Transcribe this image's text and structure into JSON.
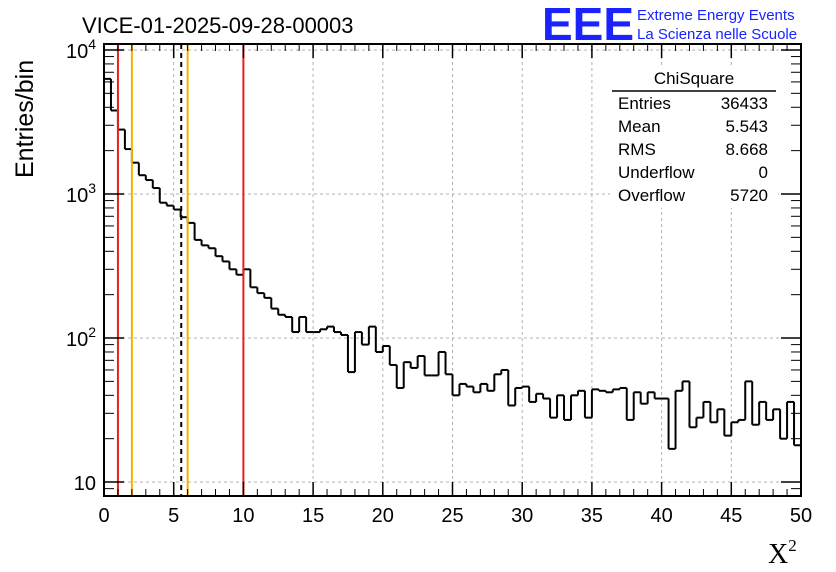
{
  "header": {
    "title": "VICE-01-2025-09-28-00003",
    "logo_text": "EEE",
    "logo_line1": "Extreme Energy Events",
    "logo_line2": "La Scienza nelle Scuole"
  },
  "stats": {
    "title": "ChiSquare",
    "rows": [
      {
        "label": "Entries",
        "value": "36433"
      },
      {
        "label": "Mean",
        "value": "5.543"
      },
      {
        "label": "RMS",
        "value": "8.668"
      },
      {
        "label": "Underflow",
        "value": "0"
      },
      {
        "label": "Overflow",
        "value": "5720"
      }
    ]
  },
  "colors": {
    "red": "#e8201d",
    "yellow": "#f0b400",
    "line": "#000000",
    "grid": "#b0b0b0",
    "logo": "#1a23ff"
  },
  "chart_data": {
    "type": "histogram",
    "title": "VICE-01-2025-09-28-00003",
    "xlabel": "X",
    "xlabel_superscript": "2",
    "ylabel": "Entries/bin",
    "xlim": [
      0,
      50
    ],
    "ylim": [
      8,
      11000
    ],
    "yscale": "log",
    "grid": true,
    "bin_width": 0.5,
    "x_ticks": [
      0,
      5,
      10,
      15,
      20,
      25,
      30,
      35,
      40,
      45,
      50
    ],
    "x_tick_labels": [
      "0",
      "5",
      "10",
      "15",
      "20",
      "25",
      "30",
      "35",
      "40",
      "45",
      "50"
    ],
    "y_ticks": [
      {
        "value": 10,
        "label": "10",
        "sup": ""
      },
      {
        "value": 100,
        "label": "10",
        "sup": "2"
      },
      {
        "value": 1000,
        "label": "10",
        "sup": "3"
      },
      {
        "value": 10000,
        "label": "10",
        "sup": "4"
      }
    ],
    "values": [
      6300,
      3800,
      2800,
      2050,
      1650,
      1350,
      1250,
      1100,
      870,
      830,
      780,
      690,
      630,
      480,
      440,
      420,
      370,
      340,
      300,
      275,
      300,
      225,
      205,
      190,
      160,
      145,
      140,
      110,
      140,
      110,
      110,
      115,
      120,
      110,
      105,
      58,
      110,
      90,
      120,
      80,
      88,
      65,
      45,
      68,
      62,
      75,
      55,
      55,
      80,
      56,
      40,
      48,
      46,
      42,
      48,
      43,
      56,
      60,
      34,
      45,
      46,
      36,
      41,
      38,
      28,
      40,
      27,
      40,
      43,
      28,
      44,
      43,
      42,
      44,
      45,
      27,
      42,
      35,
      42,
      38,
      38,
      17,
      43,
      50,
      24,
      28,
      36,
      26,
      32,
      21,
      26,
      27,
      50,
      25,
      36,
      27,
      32,
      20,
      36,
      18
    ],
    "vertical_lines": [
      {
        "x": 1.0,
        "color": "red",
        "style": "solid"
      },
      {
        "x": 2.0,
        "color": "yellow",
        "style": "solid"
      },
      {
        "x": 5.54,
        "color": "black",
        "style": "dashed"
      },
      {
        "x": 6.0,
        "color": "yellow",
        "style": "solid"
      },
      {
        "x": 10.0,
        "color": "red",
        "style": "solid"
      }
    ]
  }
}
